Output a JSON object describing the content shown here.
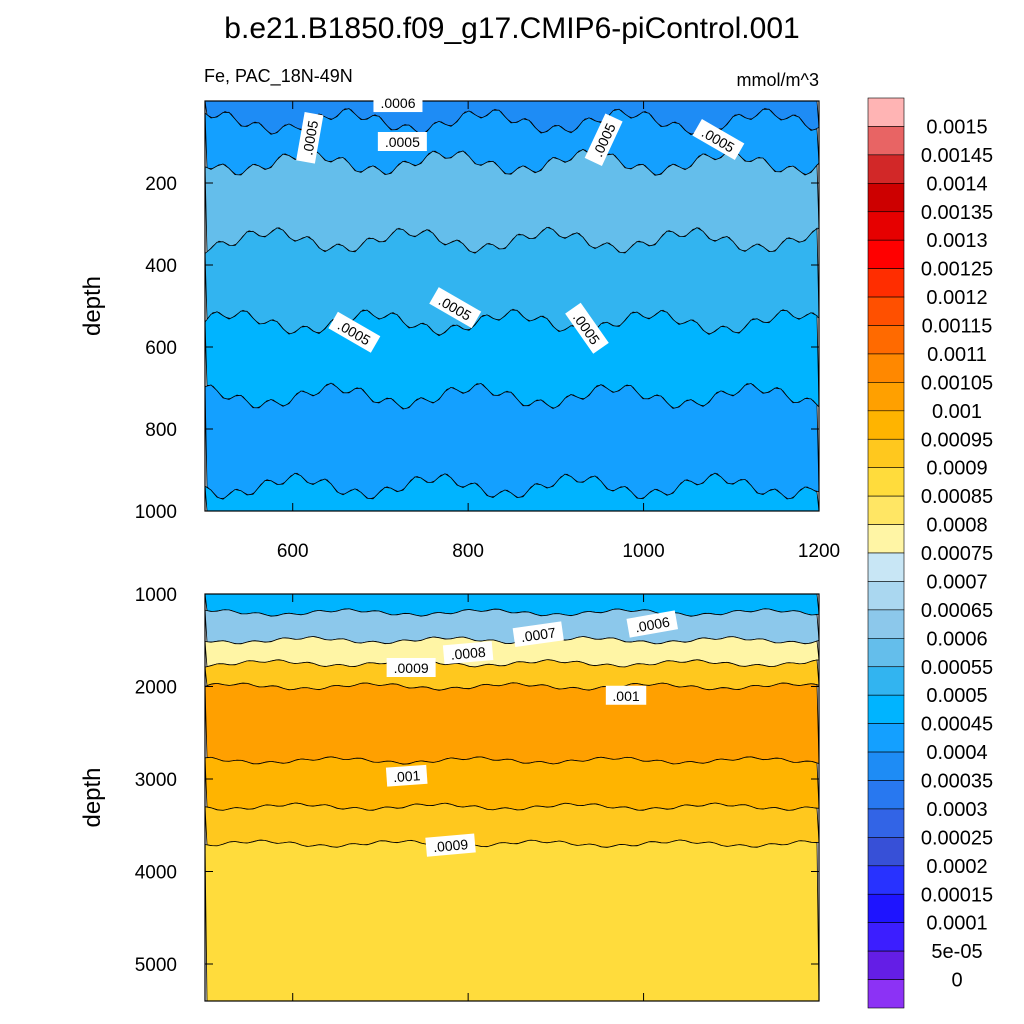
{
  "chart_data": {
    "type": "heatmap",
    "title": "b.e21.B1850.f09_g17.CMIP6-piControl.001",
    "variable_label": "Fe, PAC_18N-49N",
    "units_label": "mmol/m^3",
    "panels": [
      {
        "id": "upper",
        "xlabel": "",
        "ylabel": "depth",
        "xlim": [
          500,
          1200
        ],
        "ylim": [
          1000,
          0
        ],
        "x_ticks": [
          "600",
          "800",
          "1000",
          "1200"
        ],
        "y_ticks": [
          "200",
          "400",
          "600",
          "800",
          "1000"
        ],
        "depth_bands": [
          {
            "from": 0,
            "to": 50,
            "level": 0.00035
          },
          {
            "from": 50,
            "to": 150,
            "level": 0.0004
          },
          {
            "from": 150,
            "to": 340,
            "level": 0.00055
          },
          {
            "from": 340,
            "to": 540,
            "level": 0.0005
          },
          {
            "from": 540,
            "to": 720,
            "level": 0.00045
          },
          {
            "from": 720,
            "to": 940,
            "level": 0.0004
          },
          {
            "from": 940,
            "to": 1000,
            "level": 0.00045
          }
        ],
        "contour_labels": [
          {
            "text": ".0005",
            "x": 620,
            "y": 90,
            "rotate": -80
          },
          {
            "text": ".0005",
            "x": 725,
            "y": 100,
            "rotate": 0
          },
          {
            "text": ".0005",
            "x": 955,
            "y": 95,
            "rotate": -65
          },
          {
            "text": ".0005",
            "x": 1085,
            "y": 95,
            "rotate": 30
          },
          {
            "text": ".0006",
            "x": 720,
            "y": 5,
            "rotate": 0
          },
          {
            "text": ".0005",
            "x": 670,
            "y": 565,
            "rotate": 30
          },
          {
            "text": ".0005",
            "x": 785,
            "y": 505,
            "rotate": 30
          },
          {
            "text": ".0005",
            "x": 935,
            "y": 555,
            "rotate": 55
          }
        ]
      },
      {
        "id": "lower",
        "xlabel": "",
        "ylabel": "depth",
        "xlim": [
          500,
          1200
        ],
        "ylim": [
          5400,
          1000
        ],
        "x_ticks": [],
        "y_ticks": [
          "1000",
          "2000",
          "3000",
          "4000",
          "5000"
        ],
        "depth_bands": [
          {
            "from": 1000,
            "to": 1200,
            "level": 0.00045
          },
          {
            "from": 1200,
            "to": 1500,
            "level": 0.0006
          },
          {
            "from": 1500,
            "to": 1750,
            "level": 0.00075
          },
          {
            "from": 1750,
            "to": 2000,
            "level": 0.0009
          },
          {
            "from": 2000,
            "to": 2800,
            "level": 0.001
          },
          {
            "from": 2800,
            "to": 3300,
            "level": 0.00095
          },
          {
            "from": 3300,
            "to": 3700,
            "level": 0.0009
          },
          {
            "from": 3700,
            "to": 5400,
            "level": 0.00085
          }
        ],
        "contour_labels": [
          {
            "text": ".0006",
            "x": 1010,
            "y": 1330,
            "rotate": -10
          },
          {
            "text": ".0007",
            "x": 880,
            "y": 1440,
            "rotate": -8
          },
          {
            "text": ".0008",
            "x": 800,
            "y": 1640,
            "rotate": -5
          },
          {
            "text": ".0009",
            "x": 735,
            "y": 1800,
            "rotate": 0
          },
          {
            "text": ".001",
            "x": 980,
            "y": 2100,
            "rotate": 0
          },
          {
            "text": ".001",
            "x": 730,
            "y": 2970,
            "rotate": -4
          },
          {
            "text": ".0009",
            "x": 780,
            "y": 3720,
            "rotate": -5
          }
        ]
      }
    ],
    "colorbar": {
      "levels": [
        "0.0015",
        "0.00145",
        "0.0014",
        "0.00135",
        "0.0013",
        "0.00125",
        "0.0012",
        "0.00115",
        "0.0011",
        "0.00105",
        "0.001",
        "0.00095",
        "0.0009",
        "0.00085",
        "0.0008",
        "0.00075",
        "0.0007",
        "0.00065",
        "0.0006",
        "0.00055",
        "0.0005",
        "0.00045",
        "0.0004",
        "0.00035",
        "0.0003",
        "0.00025",
        "0.0002",
        "0.00015",
        "0.0001",
        "5e-05",
        "0"
      ],
      "colors": [
        "#ffb4b4",
        "#e86464",
        "#d22828",
        "#cd0000",
        "#e60000",
        "#ff0000",
        "#ff2d00",
        "#ff5000",
        "#ff6a00",
        "#ff8800",
        "#ffa000",
        "#ffb400",
        "#ffc81e",
        "#ffdc3c",
        "#ffe664",
        "#fff5a5",
        "#c8e6f5",
        "#aad7f0",
        "#8cc8eb",
        "#64beeb",
        "#32b4f0",
        "#00b4ff",
        "#14a0ff",
        "#1e8cf5",
        "#2878f0",
        "#3264e6",
        "#3750d7",
        "#2832ff",
        "#1e14ff",
        "#3c1eff",
        "#641ee6",
        "#8c32f5"
      ]
    }
  }
}
